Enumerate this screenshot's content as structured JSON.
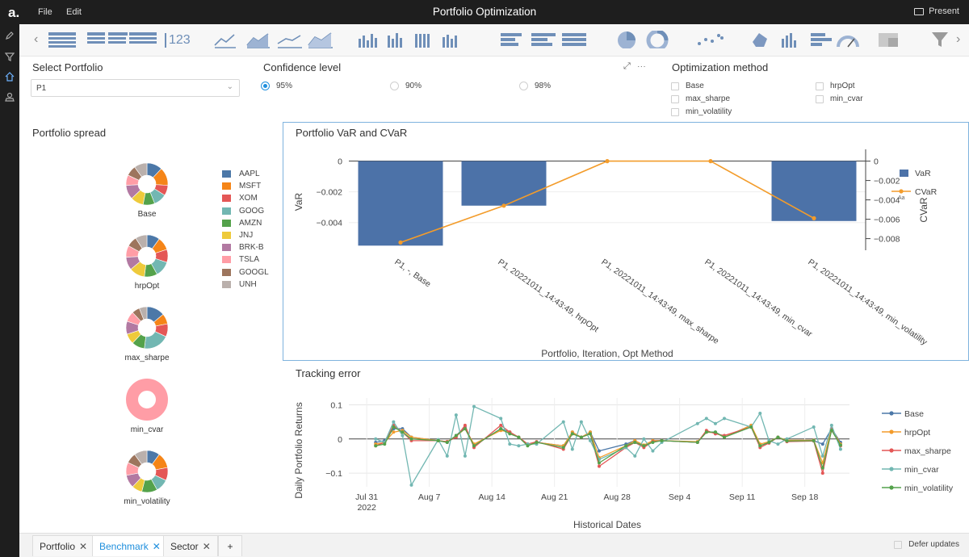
{
  "app": {
    "title": "Portfolio Optimization",
    "present_label": "Present",
    "logo_text": "a."
  },
  "menu": {
    "file": "File",
    "edit": "Edit"
  },
  "toolbar": {
    "number_label": "123"
  },
  "select_portfolio": {
    "label": "Select Portfolio",
    "value": "P1"
  },
  "confidence": {
    "label": "Confidence level",
    "options": [
      {
        "label": "95%",
        "selected": true
      },
      {
        "label": "90%",
        "selected": false
      },
      {
        "label": "98%",
        "selected": false
      }
    ]
  },
  "optimization": {
    "label": "Optimization method",
    "options": [
      "Base",
      "max_sharpe",
      "min_volatility",
      "hrpOpt",
      "min_cvar"
    ]
  },
  "spread": {
    "title": "Portfolio spread",
    "donuts": [
      "Base",
      "hrpOpt",
      "max_sharpe",
      "min_cvar",
      "min_volatility"
    ],
    "legend": [
      {
        "name": "AAPL",
        "color": "#4c78a8"
      },
      {
        "name": "MSFT",
        "color": "#f58518"
      },
      {
        "name": "XOM",
        "color": "#e45756"
      },
      {
        "name": "GOOG",
        "color": "#72b7b2"
      },
      {
        "name": "AMZN",
        "color": "#54a24b"
      },
      {
        "name": "JNJ",
        "color": "#eeca3b"
      },
      {
        "name": "BRK-B",
        "color": "#b279a2"
      },
      {
        "name": "TSLA",
        "color": "#ff9da6"
      },
      {
        "name": "GOOGL",
        "color": "#9d755d"
      },
      {
        "name": "UNH",
        "color": "#bab0ac"
      }
    ]
  },
  "chart_data": [
    {
      "type": "bar",
      "title": "Portfolio VaR and CVaR",
      "xlabel": "Portfolio, Iteration, Opt Method",
      "ylabel": "VaR",
      "y2label": "CVaR",
      "categories": [
        "P1, -, Base",
        "P1, 20221011_14:43:49, hrpOpt",
        "P1, 20221011_14:43:49, max_sharpe",
        "P1, 20221011_14:43:49, min_cvar",
        "P1, 20221011_14:43:49, min_volatility"
      ],
      "series": [
        {
          "name": "VaR",
          "type": "bar",
          "axis": "left",
          "color": "#4c72a8",
          "values": [
            -0.0055,
            -0.0029,
            0,
            0,
            -0.0039
          ]
        },
        {
          "name": "CVaR",
          "type": "line",
          "axis": "right",
          "color": "#f39c2b",
          "values": [
            -0.0084,
            -0.0046,
            0,
            0,
            -0.0059
          ]
        }
      ],
      "ylim": [
        -0.0058,
        0.0005
      ],
      "y2lim": [
        -0.0092,
        0.0008
      ],
      "yticks": [
        "0",
        "−0.002",
        "−0.004"
      ],
      "y2ticks": [
        "0",
        "−0.002",
        "−0.004",
        "−0.006",
        "−0.008"
      ],
      "legend_position": "right",
      "legend_note": "Aa"
    },
    {
      "type": "line",
      "title": "Tracking error",
      "xlabel": "Historical Dates",
      "ylabel": "Daily Portfolio Returns",
      "ylim": [
        -0.14,
        0.12
      ],
      "yticks": [
        "0.1",
        "0",
        "−0.1"
      ],
      "xticks": [
        {
          "label": "Jul 31",
          "sub": "2022",
          "date": "2022-07-31"
        },
        {
          "label": "Aug 7",
          "sub": "",
          "date": "2022-08-07"
        },
        {
          "label": "Aug 14",
          "sub": "",
          "date": "2022-08-14"
        },
        {
          "label": "Aug 21",
          "sub": "",
          "date": "2022-08-21"
        },
        {
          "label": "Aug 28",
          "sub": "",
          "date": "2022-08-28"
        },
        {
          "label": "Sep 4",
          "sub": "",
          "date": "2022-09-04"
        },
        {
          "label": "Sep 11",
          "sub": "",
          "date": "2022-09-11"
        },
        {
          "label": "Sep 18",
          "sub": "",
          "date": "2022-09-18"
        }
      ],
      "x": [
        "2022-08-01",
        "2022-08-02",
        "2022-08-03",
        "2022-08-04",
        "2022-08-05",
        "2022-08-08",
        "2022-08-09",
        "2022-08-10",
        "2022-08-11",
        "2022-08-12",
        "2022-08-15",
        "2022-08-16",
        "2022-08-17",
        "2022-08-18",
        "2022-08-19",
        "2022-08-22",
        "2022-08-23",
        "2022-08-24",
        "2022-08-25",
        "2022-08-26",
        "2022-08-29",
        "2022-08-30",
        "2022-08-31",
        "2022-09-01",
        "2022-09-02",
        "2022-09-06",
        "2022-09-07",
        "2022-09-08",
        "2022-09-09",
        "2022-09-12",
        "2022-09-13",
        "2022-09-14",
        "2022-09-15",
        "2022-09-16",
        "2022-09-19",
        "2022-09-20",
        "2022-09-21",
        "2022-09-22"
      ],
      "series": [
        {
          "name": "Base",
          "color": "#4c78a8",
          "values": [
            -0.01,
            -0.005,
            0.03,
            0.03,
            0.005,
            -0.005,
            -0.01,
            0.01,
            0.035,
            -0.02,
            0.03,
            0.02,
            0.005,
            -0.015,
            -0.01,
            -0.02,
            0.02,
            0.005,
            0.02,
            -0.035,
            -0.015,
            -0.005,
            -0.02,
            -0.005,
            -0.005,
            -0.01,
            0.02,
            0.02,
            0.005,
            0.04,
            -0.02,
            -0.01,
            0.005,
            -0.005,
            -0.005,
            -0.015,
            0.03,
            -0.01
          ]
        },
        {
          "name": "hrpOpt",
          "color": "#f39c2b",
          "values": [
            -0.015,
            -0.01,
            0.02,
            0.025,
            0.005,
            -0.005,
            -0.008,
            0.008,
            0.03,
            -0.015,
            0.025,
            0.02,
            0.005,
            -0.015,
            -0.01,
            -0.02,
            0.02,
            0.005,
            0.02,
            -0.055,
            -0.02,
            -0.005,
            -0.018,
            -0.005,
            -0.005,
            -0.008,
            0.02,
            0.018,
            0.005,
            0.04,
            -0.015,
            -0.008,
            0.005,
            -0.004,
            -0.004,
            -0.07,
            0.03,
            -0.015
          ]
        },
        {
          "name": "max_sharpe",
          "color": "#e45756",
          "values": [
            -0.02,
            -0.01,
            0.04,
            0.02,
            -0.005,
            -0.005,
            -0.008,
            0.005,
            0.04,
            -0.025,
            0.04,
            0.02,
            0.005,
            -0.015,
            -0.008,
            -0.03,
            0.015,
            0.005,
            0.015,
            -0.08,
            -0.025,
            -0.01,
            -0.025,
            -0.008,
            -0.005,
            -0.01,
            0.025,
            0.015,
            0.01,
            0.035,
            -0.025,
            -0.012,
            0.005,
            -0.008,
            -0.006,
            -0.1,
            0.03,
            -0.02
          ]
        },
        {
          "name": "min_cvar",
          "color": "#72b7b2",
          "values": [
            0.0,
            -0.01,
            0.05,
            0.01,
            -0.135,
            -0.002,
            -0.05,
            0.07,
            -0.05,
            0.095,
            0.06,
            -0.015,
            -0.02,
            -0.015,
            -0.015,
            0.05,
            -0.03,
            0.05,
            -0.005,
            -0.06,
            -0.025,
            -0.05,
            0.0,
            -0.035,
            -0.01,
            0.045,
            0.06,
            0.045,
            0.06,
            0.035,
            0.075,
            -0.005,
            -0.015,
            0.0,
            0.035,
            -0.05,
            0.04,
            -0.03
          ]
        },
        {
          "name": "min_volatility",
          "color": "#54a24b",
          "values": [
            -0.02,
            -0.015,
            0.035,
            0.02,
            0.0,
            -0.005,
            -0.01,
            0.01,
            0.03,
            -0.02,
            0.03,
            0.015,
            0.005,
            -0.02,
            -0.01,
            -0.025,
            0.015,
            0.005,
            0.015,
            -0.07,
            -0.02,
            -0.01,
            -0.02,
            -0.01,
            -0.005,
            -0.01,
            0.02,
            0.02,
            0.005,
            0.035,
            -0.02,
            -0.01,
            0.005,
            -0.006,
            -0.005,
            -0.085,
            0.025,
            -0.018
          ]
        }
      ],
      "legend_position": "right"
    }
  ],
  "bottom_tabs": [
    {
      "label": "Portfolio",
      "active": false
    },
    {
      "label": "Benchmark",
      "active": true
    },
    {
      "label": "Sector",
      "active": false
    }
  ],
  "bottom": {
    "add_label": "+",
    "defer_label": "Defer updates"
  }
}
